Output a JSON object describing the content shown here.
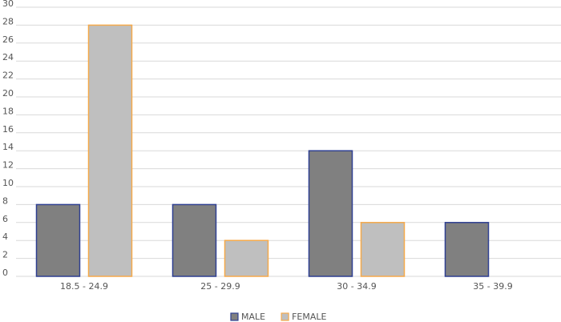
{
  "chart_data": {
    "type": "bar",
    "categories": [
      "18.5 - 24.9",
      "25 - 29.9",
      "30 - 34.9",
      "35 - 39.9"
    ],
    "series": [
      {
        "name": "MALE",
        "color": "#808080",
        "edgecolor": "#2e3f91",
        "values": [
          8,
          8,
          14,
          6
        ]
      },
      {
        "name": "FEMALE",
        "color": "#bfbfbf",
        "edgecolor": "#f5a94a",
        "values": [
          28,
          4,
          6,
          0
        ]
      }
    ],
    "ylim": [
      0,
      30
    ],
    "yticks": [
      0,
      2,
      4,
      6,
      8,
      10,
      12,
      14,
      16,
      18,
      20,
      22,
      24,
      26,
      28,
      30
    ],
    "grid": true,
    "legend": "bottom"
  }
}
